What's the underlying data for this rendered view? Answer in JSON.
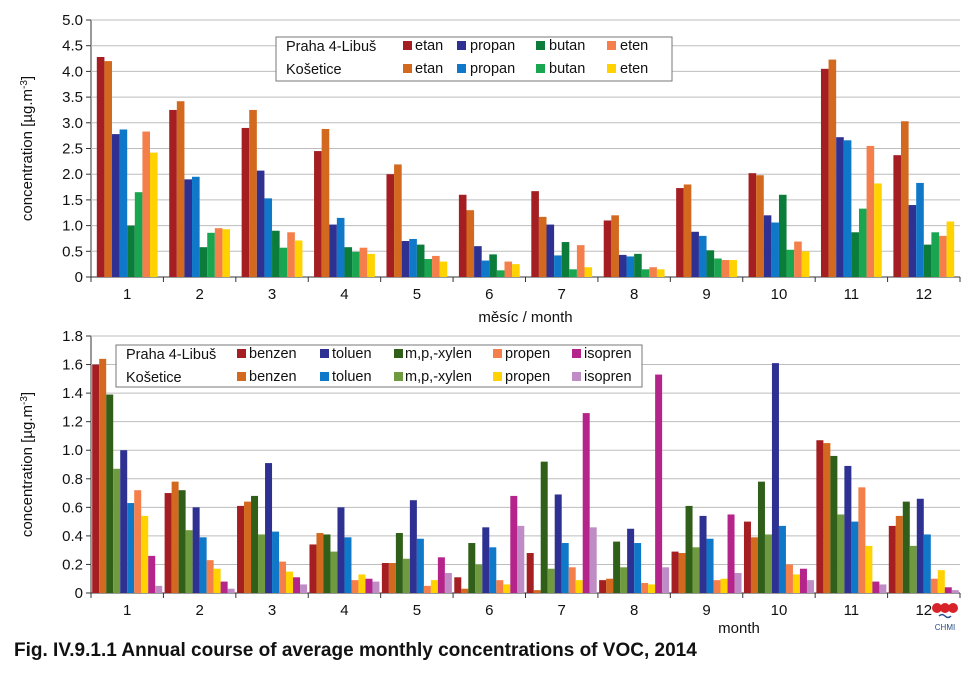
{
  "caption": "Fig. IV.9.1.1 Annual course of average monthly concentrations of VOC, 2014",
  "logo": {
    "icon": "chmi-logo-icon",
    "text": "CHMI"
  },
  "chart_data": [
    {
      "type": "bar",
      "ylabel": "concentration [µg.m-3]",
      "ylabel_main": "concentration [µg.m",
      "ylabel_sup": "-3",
      "ylabel_end": "]",
      "xlabel": "měsíc / month",
      "ylim": [
        0,
        5
      ],
      "yticks": [
        "0",
        "0.5",
        "1.0",
        "1.5",
        "2.0",
        "2.5",
        "3.0",
        "3.5",
        "4.0",
        "4.5",
        "5.0"
      ],
      "categories": [
        "1",
        "2",
        "3",
        "4",
        "5",
        "6",
        "7",
        "8",
        "9",
        "10",
        "11",
        "12"
      ],
      "legend_stations": [
        "Praha 4-Libuš",
        "Košetice"
      ],
      "legend_compounds": [
        "etan",
        "propan",
        "butan",
        "eten"
      ],
      "series": [
        {
          "station": "Praha 4-Libuš",
          "name": "etan",
          "color": "#a41e22",
          "values": [
            4.28,
            3.25,
            2.9,
            2.45,
            2.0,
            1.6,
            1.67,
            1.1,
            1.73,
            2.02,
            4.05,
            2.37
          ]
        },
        {
          "station": "Košetice",
          "name": "etan",
          "color": "#d2691e",
          "values": [
            4.2,
            3.42,
            3.25,
            2.88,
            2.19,
            1.3,
            1.17,
            1.2,
            1.8,
            1.98,
            4.23,
            3.03
          ]
        },
        {
          "station": "Praha 4-Libuš",
          "name": "propan",
          "color": "#2e3192",
          "values": [
            2.78,
            1.9,
            2.07,
            1.02,
            0.7,
            0.6,
            1.02,
            0.43,
            0.88,
            1.2,
            2.72,
            1.4
          ]
        },
        {
          "station": "Košetice",
          "name": "propan",
          "color": "#0f78c8",
          "values": [
            2.87,
            1.95,
            1.53,
            1.15,
            0.74,
            0.32,
            0.42,
            0.4,
            0.8,
            1.06,
            2.66,
            1.83
          ]
        },
        {
          "station": "Praha 4-Libuš",
          "name": "butan",
          "color": "#0b7c3a",
          "values": [
            1.0,
            0.58,
            0.9,
            0.58,
            0.63,
            0.44,
            0.68,
            0.45,
            0.52,
            1.6,
            0.87,
            0.63
          ]
        },
        {
          "station": "Košetice",
          "name": "butan",
          "color": "#1aa650",
          "values": [
            1.65,
            0.86,
            0.57,
            0.49,
            0.35,
            0.13,
            0.15,
            0.15,
            0.36,
            0.53,
            1.33,
            0.87
          ]
        },
        {
          "station": "Praha 4-Libuš",
          "name": "eten",
          "color": "#f47f4a",
          "values": [
            2.83,
            0.95,
            0.87,
            0.57,
            0.41,
            0.3,
            0.62,
            0.19,
            0.33,
            0.69,
            2.55,
            0.8
          ]
        },
        {
          "station": "Košetice",
          "name": "eten",
          "color": "#ffd200",
          "values": [
            2.42,
            0.93,
            0.71,
            0.45,
            0.3,
            0.25,
            0.19,
            0.15,
            0.33,
            0.5,
            1.82,
            1.08
          ]
        }
      ]
    },
    {
      "type": "bar",
      "ylabel": "concentration [µg.m-3]",
      "ylabel_main": "concentration [µg.m",
      "ylabel_sup": "-3",
      "ylabel_end": "]",
      "xlabel": "month",
      "ylim": [
        0,
        1.8
      ],
      "yticks": [
        "0",
        "0.2",
        "0.4",
        "0.6",
        "0.8",
        "1.0",
        "1.2",
        "1.4",
        "1.6",
        "1.8"
      ],
      "categories": [
        "1",
        "2",
        "3",
        "4",
        "5",
        "6",
        "7",
        "8",
        "9",
        "10",
        "11",
        "12"
      ],
      "legend_stations": [
        "Praha 4-Libuš",
        "Košetice"
      ],
      "legend_compounds": [
        "benzen",
        "toluen",
        "m,p,-xylen",
        "propen",
        "isopren"
      ],
      "series": [
        {
          "station": "Praha 4-Libuš",
          "name": "benzen",
          "color": "#a41e22",
          "values": [
            1.6,
            0.7,
            0.61,
            0.34,
            0.21,
            0.11,
            0.28,
            0.09,
            0.29,
            0.5,
            1.07,
            0.47
          ]
        },
        {
          "station": "Košetice",
          "name": "benzen",
          "color": "#d2691e",
          "values": [
            1.64,
            0.78,
            0.64,
            0.42,
            0.21,
            0.03,
            0.02,
            0.1,
            0.28,
            0.39,
            1.05,
            0.54
          ]
        },
        {
          "station": "Praha 4-Libuš",
          "name": "m,p,-xylen",
          "color": "#2f5f18",
          "values": [
            1.39,
            0.72,
            0.68,
            0.41,
            0.42,
            0.35,
            0.92,
            0.36,
            0.61,
            0.78,
            0.96,
            0.64
          ]
        },
        {
          "station": "Košetice",
          "name": "m,p,-xylen",
          "color": "#6f9a3f",
          "values": [
            0.87,
            0.44,
            0.41,
            0.29,
            0.24,
            0.2,
            0.17,
            0.18,
            0.32,
            0.41,
            0.55,
            0.33
          ]
        },
        {
          "station": "Praha 4-Libuš",
          "name": "toluen",
          "color": "#2e3192",
          "values": [
            1.0,
            0.6,
            0.91,
            0.6,
            0.65,
            0.46,
            0.69,
            0.45,
            0.54,
            1.61,
            0.89,
            0.66
          ]
        },
        {
          "station": "Košetice",
          "name": "toluen",
          "color": "#0f78c8",
          "values": [
            0.63,
            0.39,
            0.43,
            0.39,
            0.38,
            0.32,
            0.35,
            0.35,
            0.38,
            0.47,
            0.5,
            0.41
          ]
        },
        {
          "station": "Praha 4-Libuš",
          "name": "propen",
          "color": "#f47f4a",
          "values": [
            0.72,
            0.23,
            0.22,
            0.09,
            0.05,
            0.09,
            0.18,
            0.07,
            0.09,
            0.2,
            0.74,
            0.1
          ]
        },
        {
          "station": "Košetice",
          "name": "propen",
          "color": "#ffd200",
          "values": [
            0.54,
            0.17,
            0.15,
            0.13,
            0.09,
            0.06,
            0.09,
            0.06,
            0.1,
            0.13,
            0.33,
            0.16
          ]
        },
        {
          "station": "Praha 4-Libuš",
          "name": "isopren",
          "color": "#b5248b",
          "values": [
            0.26,
            0.08,
            0.11,
            0.1,
            0.25,
            0.68,
            1.26,
            1.53,
            0.55,
            0.17,
            0.08,
            0.04
          ]
        },
        {
          "station": "Košetice",
          "name": "isopren",
          "color": "#c08cc6",
          "values": [
            0.05,
            0.03,
            0.06,
            0.08,
            0.14,
            0.47,
            0.46,
            0.18,
            0.14,
            0.09,
            0.06,
            0.02
          ]
        }
      ]
    }
  ]
}
